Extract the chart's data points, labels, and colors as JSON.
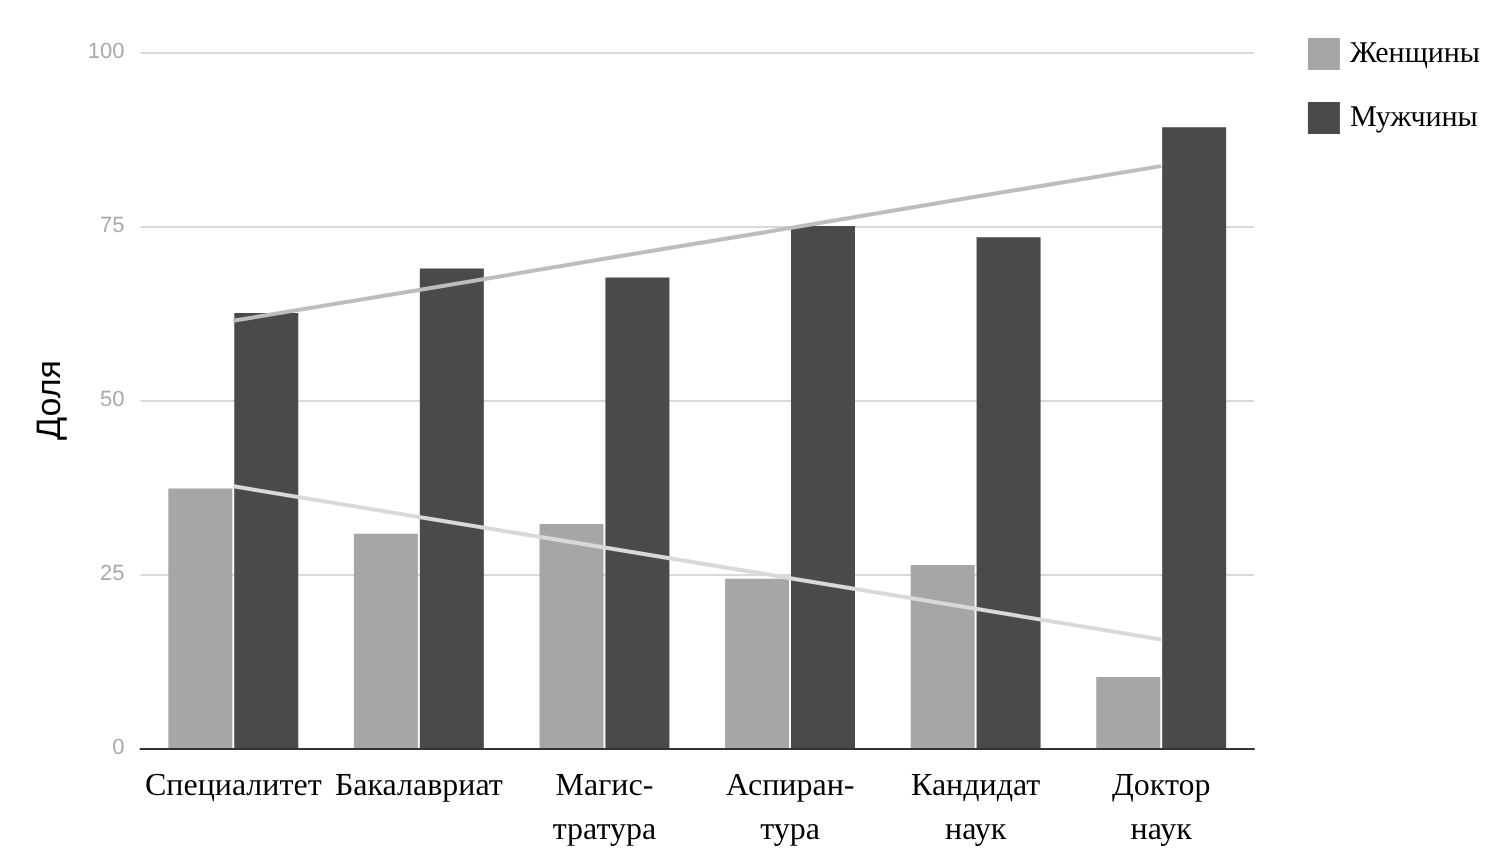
{
  "chart_data": {
    "type": "bar",
    "ylabel": "Доля",
    "categories": [
      "Специалитет",
      "Бакалавриат",
      "Магис-\nтратура",
      "Аспиран-\nтура",
      "Кандидат\nнаук",
      "Доктор\nнаук"
    ],
    "series": [
      {
        "name": "Женщины",
        "color": "#a6a6a6",
        "values": [
          37.3,
          30.8,
          32.2,
          24.3,
          26.3,
          10.2
        ]
      },
      {
        "name": "Мужчины",
        "color": "#4a4a4a",
        "values": [
          62.5,
          68.9,
          67.6,
          75.0,
          73.4,
          89.2
        ]
      },
      {
        "type": "line",
        "color": "#d9d9d9",
        "x": [
          "Специалитет",
          "Бакалавриат",
          "Магис-\nтратура",
          "Аспиран-\nтура",
          "Кандидат\nнаук",
          "Доктор\nнаук"
        ],
        "values": [
          37.6,
          33.2,
          28.8,
          24.4,
          20.0,
          15.6
        ]
      },
      {
        "type": "line",
        "color": "#bdbdbd",
        "x": [
          "Специалитет",
          "Бакалавриат",
          "Магис-\nтратура",
          "Аспиран-\nтура",
          "Кандидат\nнаук",
          "Доктор\nнаук"
        ],
        "values": [
          61.4,
          65.8,
          70.3,
          74.7,
          79.2,
          83.6
        ]
      }
    ],
    "ylim": [
      0,
      100
    ],
    "yticks": [
      0,
      25,
      50,
      75,
      100
    ],
    "grid": "y",
    "legend": "top right",
    "marker": "none"
  }
}
